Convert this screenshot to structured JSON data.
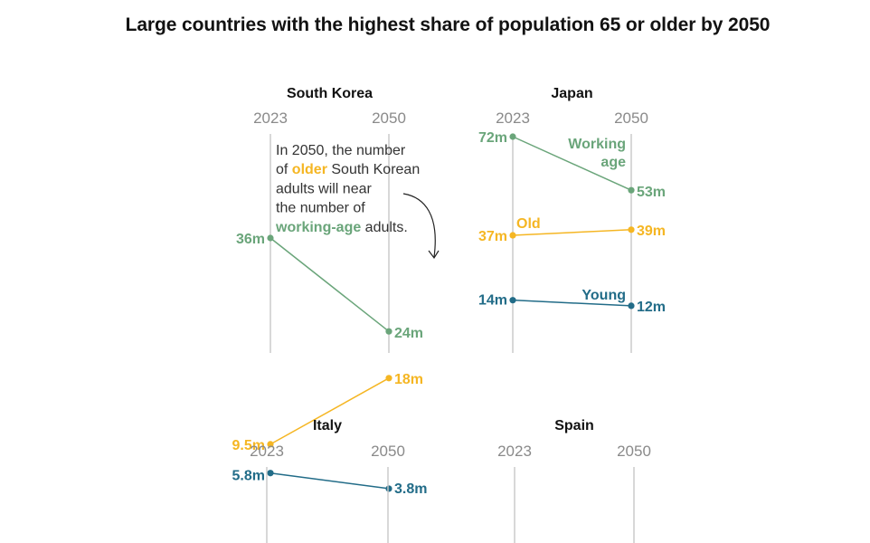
{
  "title": "Large countries with the highest share of population 65 or older by 2050",
  "colors": {
    "working": "#6aa57a",
    "old": "#f5b623",
    "young": "#226c88",
    "axis": "#c8c8c8",
    "year": "#8a8a8a"
  },
  "chart_data": [
    {
      "type": "line",
      "country": "South Korea",
      "x": [
        "2023",
        "2050"
      ],
      "series": [
        {
          "key": "working",
          "values": [
            36,
            24
          ],
          "labels": [
            "36m",
            "24m"
          ]
        },
        {
          "key": "old",
          "values": [
            9.5,
            18
          ],
          "labels": [
            "9.5m",
            "18m"
          ]
        },
        {
          "key": "young",
          "values": [
            5.8,
            3.8
          ],
          "labels": [
            "5.8m",
            "3.8m"
          ]
        }
      ],
      "annotation": {
        "lines": [
          [
            {
              "t": "In 2050, the number"
            }
          ],
          [
            {
              "t": "of "
            },
            {
              "t": "older",
              "c": "old"
            },
            {
              "t": " South Korean"
            }
          ],
          [
            {
              "t": "adults will near"
            }
          ],
          [
            {
              "t": "the number of"
            }
          ],
          [
            {
              "t": "working-age",
              "c": "working"
            },
            {
              "t": " adults."
            }
          ]
        ]
      }
    },
    {
      "type": "line",
      "country": "Japan",
      "x": [
        "2023",
        "2050"
      ],
      "series": [
        {
          "key": "working",
          "name": "Working age",
          "values": [
            72,
            53
          ],
          "labels": [
            "72m",
            "53m"
          ]
        },
        {
          "key": "old",
          "name": "Old",
          "values": [
            37,
            39
          ],
          "labels": [
            "37m",
            "39m"
          ]
        },
        {
          "key": "young",
          "name": "Young",
          "values": [
            14,
            12
          ],
          "labels": [
            "14m",
            "12m"
          ]
        }
      ]
    },
    {
      "type": "line",
      "country": "Italy",
      "x": [
        "2023",
        "2050"
      ],
      "series": []
    },
    {
      "type": "line",
      "country": "Spain",
      "x": [
        "2023",
        "2050"
      ],
      "series": []
    }
  ]
}
